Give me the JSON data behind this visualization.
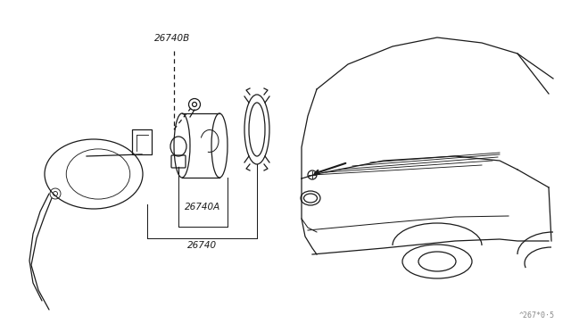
{
  "bg_color": "#ffffff",
  "line_color": "#1a1a1a",
  "text_color": "#1a1a1a",
  "watermark": "^267*0·5",
  "label_26740B": "26740B",
  "label_26740A": "26740A",
  "label_26740": "26740"
}
